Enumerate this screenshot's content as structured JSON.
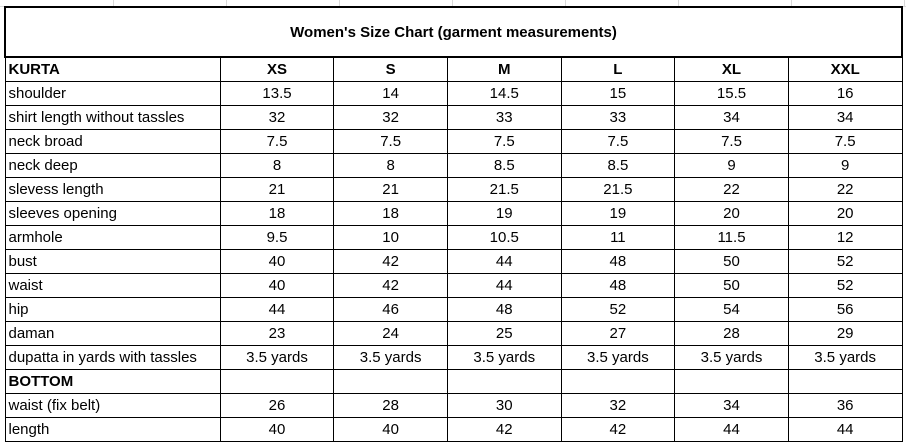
{
  "title": "Women's Size Chart (garment measurements)",
  "kurta": {
    "section_label": "KURTA",
    "sizes": [
      "XS",
      "S",
      "M",
      "L",
      "XL",
      "XXL"
    ],
    "rows": [
      {
        "label": "shoulder",
        "values": [
          "13.5",
          "14",
          "14.5",
          "15",
          "15.5",
          "16"
        ]
      },
      {
        "label": "shirt length without tassles",
        "values": [
          "32",
          "32",
          "33",
          "33",
          "34",
          "34"
        ]
      },
      {
        "label": "neck broad",
        "values": [
          "7.5",
          "7.5",
          "7.5",
          "7.5",
          "7.5",
          "7.5"
        ]
      },
      {
        "label": "neck deep",
        "values": [
          "8",
          "8",
          "8.5",
          "8.5",
          "9",
          "9"
        ]
      },
      {
        "label": "slevess length",
        "values": [
          "21",
          "21",
          "21.5",
          "21.5",
          "22",
          "22"
        ]
      },
      {
        "label": "sleeves opening",
        "values": [
          "18",
          "18",
          "19",
          "19",
          "20",
          "20"
        ]
      },
      {
        "label": "armhole",
        "values": [
          "9.5",
          "10",
          "10.5",
          "11",
          "11.5",
          "12"
        ]
      },
      {
        "label": "bust",
        "values": [
          "40",
          "42",
          "44",
          "48",
          "50",
          "52"
        ]
      },
      {
        "label": "waist",
        "values": [
          "40",
          "42",
          "44",
          "48",
          "50",
          "52"
        ]
      },
      {
        "label": "hip",
        "values": [
          "44",
          "46",
          "48",
          "52",
          "54",
          "56"
        ]
      },
      {
        "label": "daman",
        "values": [
          "23",
          "24",
          "25",
          "27",
          "28",
          "29"
        ]
      },
      {
        "label": "dupatta in yards with tassles",
        "values": [
          "3.5 yards",
          "3.5 yards",
          "3.5 yards",
          "3.5 yards",
          "3.5 yards",
          "3.5 yards"
        ]
      }
    ]
  },
  "bottom": {
    "section_label": "BOTTOM",
    "rows": [
      {
        "label": "waist (fix belt)",
        "values": [
          "26",
          "28",
          "30",
          "32",
          "34",
          "36"
        ]
      },
      {
        "label": "length",
        "values": [
          "40",
          "40",
          "42",
          "42",
          "44",
          "44"
        ]
      }
    ]
  }
}
